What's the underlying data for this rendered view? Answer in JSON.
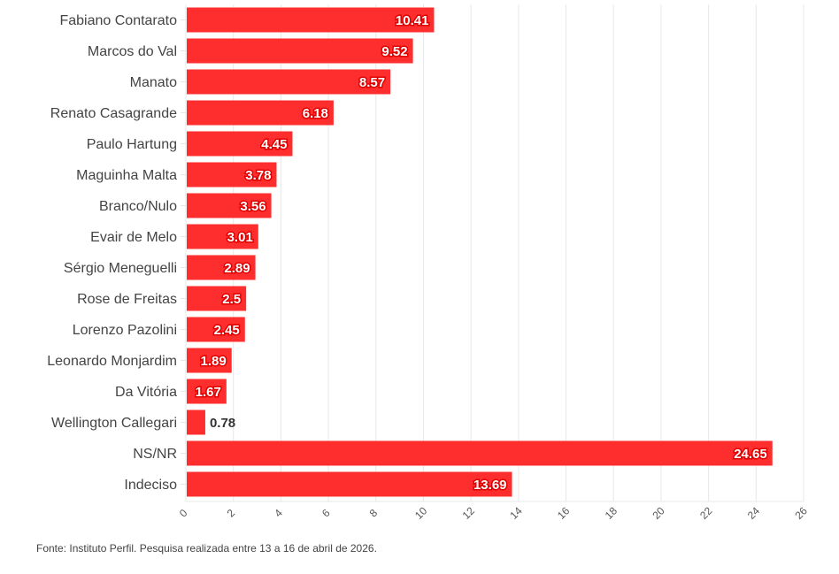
{
  "chart_data": {
    "type": "bar",
    "orientation": "horizontal",
    "categories": [
      "Fabiano Contarato",
      "Marcos do Val",
      "Manato",
      "Renato Casagrande",
      "Paulo Hartung",
      "Maguinha Malta",
      "Branco/Nulo",
      "Evair de Melo",
      "Sérgio Meneguelli",
      "Rose de Freitas",
      "Lorenzo Pazolini",
      "Leonardo Monjardim",
      "Da Vitória",
      "Wellington Callegari",
      "NS/NR",
      "Indeciso"
    ],
    "values": [
      10.41,
      9.52,
      8.57,
      6.18,
      4.45,
      3.78,
      3.56,
      3.01,
      2.89,
      2.5,
      2.45,
      1.89,
      1.67,
      0.78,
      24.65,
      13.69
    ],
    "value_labels": [
      "10.41",
      "9.52",
      "8.57",
      "6.18",
      "4.45",
      "3.78",
      "3.56",
      "3.01",
      "2.89",
      "2.5",
      "2.45",
      "1.89",
      "1.67",
      "0.78",
      "24.65",
      "13.69"
    ],
    "title": "",
    "xlabel": "",
    "ylabel": "",
    "xlim": [
      0,
      26
    ],
    "xticks": [
      0,
      2,
      4,
      6,
      8,
      10,
      12,
      14,
      16,
      18,
      20,
      22,
      24,
      26
    ],
    "xtick_labels": [
      "0",
      "2",
      "4",
      "6",
      "8",
      "10",
      "12",
      "14",
      "16",
      "18",
      "20",
      "22",
      "24",
      "26"
    ],
    "grid": true,
    "bar_color": "#ff2e2e"
  },
  "source": "Fonte: Instituto Perfil. Pesquisa realizada entre 13 a 16 de abril de 2026."
}
